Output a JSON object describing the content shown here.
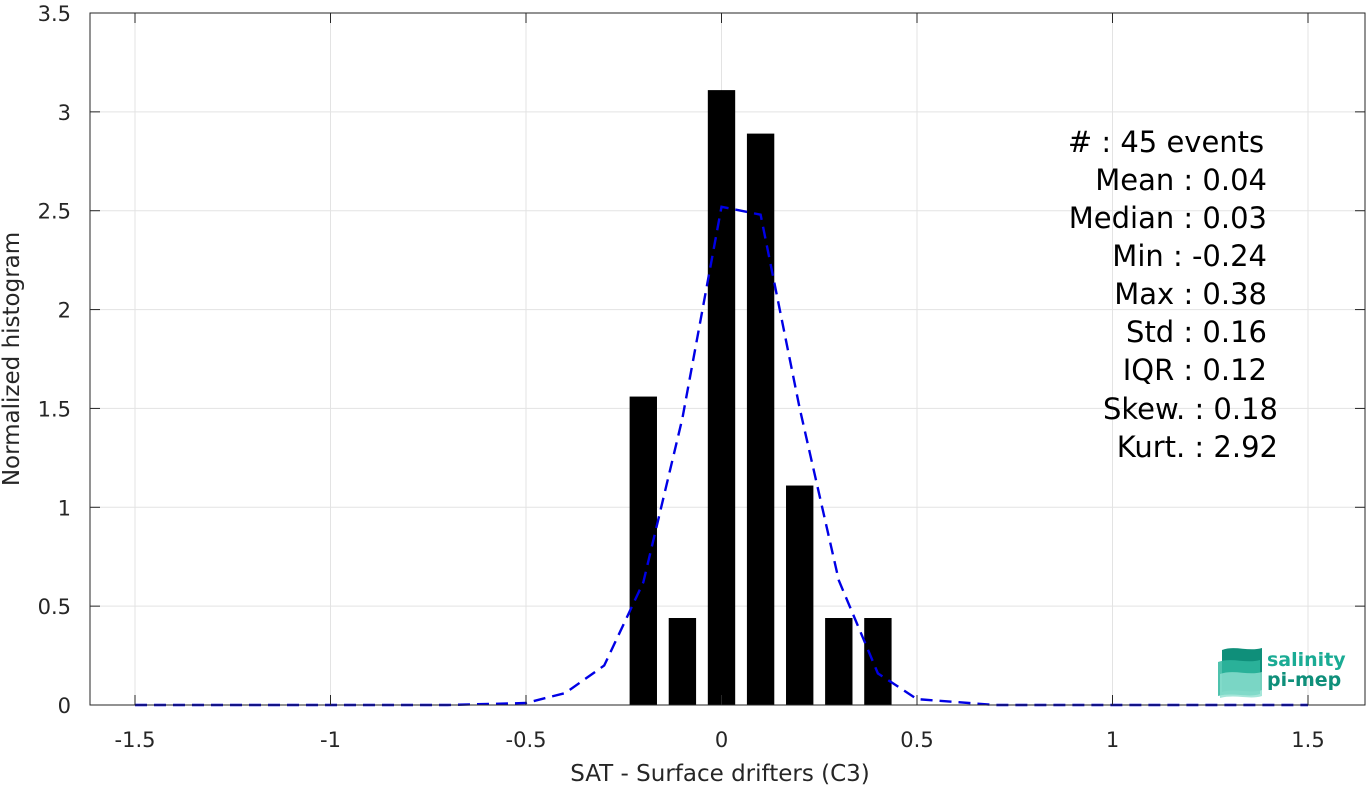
{
  "chart_data": {
    "type": "bar",
    "xlabel": "SAT - Surface drifters (C3)",
    "ylabel": "Normalized histogram",
    "xlim": [
      -1.5,
      1.5
    ],
    "ylim": [
      0,
      3.5
    ],
    "grid": true,
    "x_ticks": [
      -1.5,
      -1,
      -0.5,
      0,
      0.5,
      1,
      1.5
    ],
    "x_tick_labels": [
      "-1.5",
      "-1",
      "-0.5",
      "0",
      "0.5",
      "1",
      "1.5"
    ],
    "y_ticks": [
      0,
      0.5,
      1,
      1.5,
      2,
      2.5,
      3,
      3.5
    ],
    "y_tick_labels": [
      "0",
      "0.5",
      "1",
      "1.5",
      "2",
      "2.5",
      "3",
      "3.5"
    ],
    "bar_width": 0.07,
    "bars": {
      "x": [
        -0.2,
        -0.1,
        0.0,
        0.1,
        0.2,
        0.3,
        0.4
      ],
      "values": [
        1.56,
        0.44,
        3.11,
        2.89,
        1.11,
        0.44,
        0.44
      ],
      "color": "#000000"
    },
    "fit_curve": {
      "style": "dashed",
      "color": "#0000e6",
      "x": [
        -1.5,
        -1.3,
        -1.1,
        -0.9,
        -0.7,
        -0.5,
        -0.4,
        -0.3,
        -0.2,
        -0.1,
        0.0,
        0.1,
        0.2,
        0.3,
        0.4,
        0.5,
        0.7,
        0.9,
        1.1,
        1.3,
        1.5
      ],
      "y": [
        0,
        0,
        0,
        0,
        0,
        0.01,
        0.06,
        0.2,
        0.62,
        1.45,
        2.52,
        2.48,
        1.5,
        0.63,
        0.16,
        0.03,
        0,
        0,
        0,
        0,
        0
      ]
    },
    "stats": [
      "#  : 45 events",
      "Mean : 0.04",
      "Median : 0.03",
      "Min : -0.24",
      "Max : 0.38",
      "Std : 0.16",
      "IQR : 0.12",
      "Skew. : 0.18",
      "Kurt. : 2.92"
    ]
  },
  "logo": {
    "line1": "salinity",
    "line2": "pi-mep",
    "color": "#1aab94"
  }
}
